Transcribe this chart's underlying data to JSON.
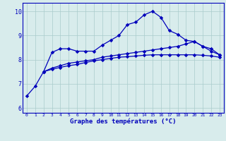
{
  "line1_x": [
    0,
    1,
    2,
    3,
    4,
    5,
    6,
    7,
    8,
    9,
    10,
    11,
    12,
    13,
    14,
    15,
    16,
    17,
    18,
    19,
    20,
    21,
    22,
    23
  ],
  "line1_y": [
    6.5,
    6.9,
    7.5,
    8.3,
    8.45,
    8.45,
    8.35,
    8.35,
    8.35,
    8.6,
    8.8,
    9.0,
    9.45,
    9.55,
    9.85,
    10.0,
    9.75,
    9.2,
    9.05,
    8.8,
    8.75,
    8.55,
    8.45,
    8.2
  ],
  "line2_x": [
    2,
    3,
    4,
    5,
    6,
    7,
    8,
    9,
    10,
    11,
    12,
    13,
    14,
    15,
    16,
    17,
    18,
    19,
    20,
    21,
    22,
    23
  ],
  "line2_y": [
    7.5,
    7.65,
    7.75,
    7.85,
    7.9,
    7.95,
    8.0,
    8.1,
    8.15,
    8.2,
    8.25,
    8.3,
    8.35,
    8.4,
    8.45,
    8.5,
    8.55,
    8.65,
    8.75,
    8.55,
    8.35,
    8.2
  ],
  "line3_x": [
    2,
    3,
    4,
    5,
    6,
    7,
    8,
    9,
    10,
    11,
    12,
    13,
    14,
    15,
    16,
    17,
    18,
    19,
    20,
    21,
    22,
    23
  ],
  "line3_y": [
    7.5,
    7.6,
    7.68,
    7.75,
    7.8,
    7.88,
    7.95,
    8.0,
    8.05,
    8.1,
    8.12,
    8.15,
    8.18,
    8.2,
    8.2,
    8.2,
    8.2,
    8.2,
    8.2,
    8.18,
    8.15,
    8.1
  ],
  "bg_color": "#d8ecec",
  "line_color": "#0000bb",
  "grid_color": "#aacccc",
  "xlabel": "Graphe des températures (°C)",
  "ylim": [
    5.8,
    10.35
  ],
  "xlim": [
    -0.5,
    23.5
  ],
  "yticks": [
    6,
    7,
    8,
    9,
    10
  ],
  "xticks": [
    0,
    1,
    2,
    3,
    4,
    5,
    6,
    7,
    8,
    9,
    10,
    11,
    12,
    13,
    14,
    15,
    16,
    17,
    18,
    19,
    20,
    21,
    22,
    23
  ]
}
